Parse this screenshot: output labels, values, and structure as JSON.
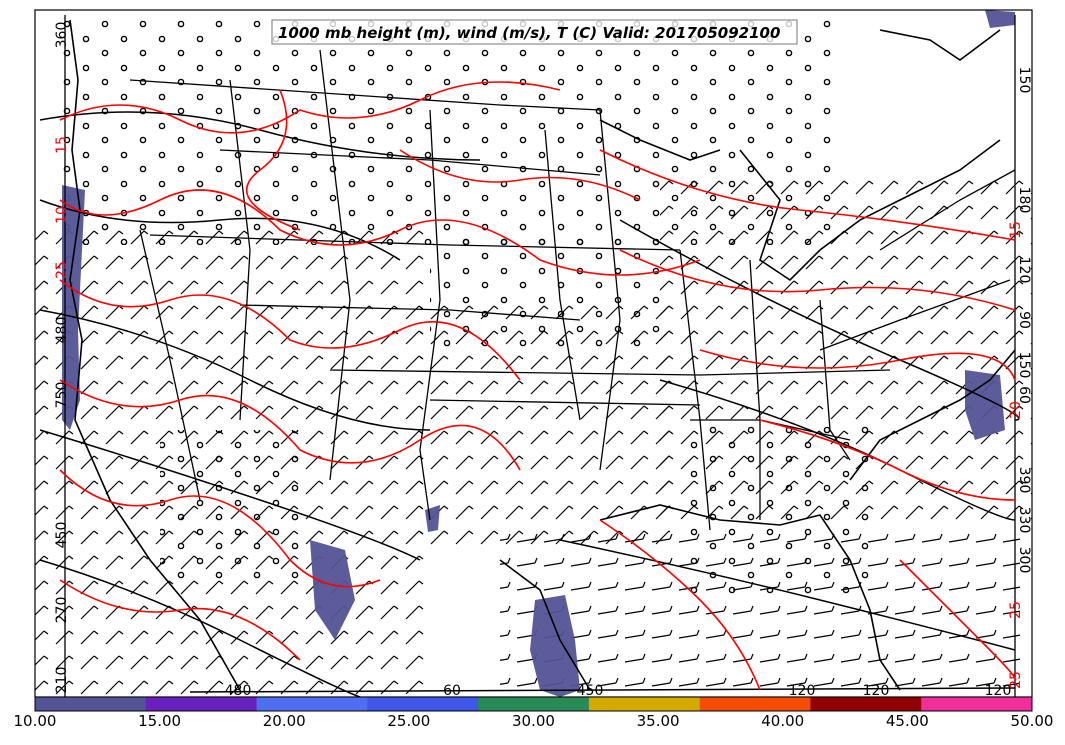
{
  "map": {
    "title": "1000 mb height (m), wind (m/s), T (C) Valid: 201705092100",
    "colors": {
      "background": "#ffffff",
      "boundary": "#000000",
      "temperature_contour": "#ff0000",
      "height_contour": "#000000",
      "wind_shading_low": "#535396"
    }
  },
  "colorbar": {
    "tick_labels": [
      "10.00",
      "15.00",
      "20.00",
      "25.00",
      "30.00",
      "35.00",
      "40.00",
      "45.00",
      "50.00"
    ],
    "colors": [
      "#535396",
      "#6a1fbf",
      "#4f6ff2",
      "#3f56ea",
      "#2a8a55",
      "#d5aa00",
      "#f54c00",
      "#900000",
      "#f12e9b"
    ]
  },
  "contour_labels": {
    "height_left": [
      "360",
      "480",
      "750",
      "450",
      "270",
      "210"
    ],
    "height_right": [
      "150",
      "180",
      "120",
      "90",
      "150",
      "60",
      "390",
      "330",
      "300"
    ],
    "height_bottom": [
      "480",
      "60",
      "450",
      "120",
      "120",
      "120"
    ],
    "temperature": [
      "15",
      "10",
      "25",
      "15",
      "20",
      "25",
      "25"
    ]
  }
}
